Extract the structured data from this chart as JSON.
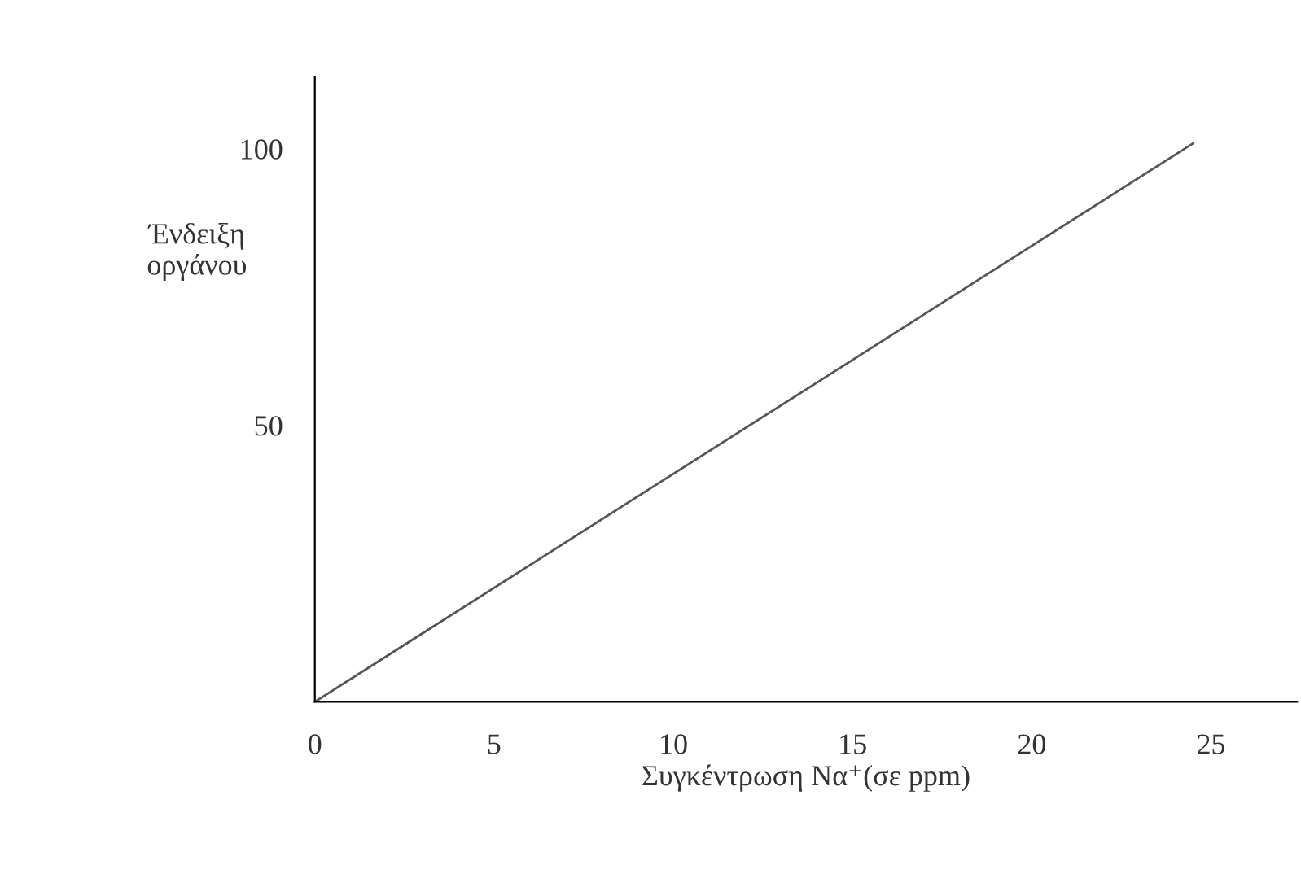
{
  "chart_data": {
    "type": "line",
    "xlabel": "Συγκέντρωση Να⁺(σε ppm)",
    "ylabel": "Ένδειξη\nοργάνου",
    "x": [
      0,
      24.5
    ],
    "series": [
      {
        "color": "#555555",
        "values": [
          0,
          101
        ]
      }
    ],
    "xlim": [
      0,
      27.4
    ],
    "ylim": [
      0,
      113
    ],
    "xticks": [
      0,
      5,
      10,
      15,
      20,
      25
    ],
    "yticks": [
      50,
      100
    ],
    "grid": false,
    "legend": false,
    "marker": "none",
    "line_style": "solid"
  }
}
